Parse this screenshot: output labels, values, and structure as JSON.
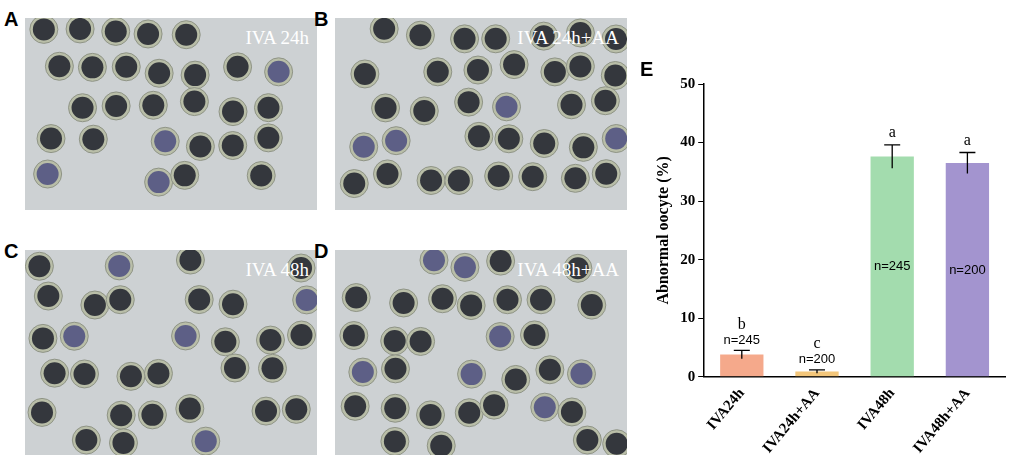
{
  "panels": [
    {
      "letter": "A",
      "label": "IVA 24h"
    },
    {
      "letter": "B",
      "label": "IVA 24h+AA"
    },
    {
      "letter": "C",
      "label": "IVA 48h"
    },
    {
      "letter": "D",
      "label": "IVA 48h+AA"
    },
    {
      "letter": "E"
    }
  ],
  "chart_data": {
    "type": "bar",
    "y_label": "Abnormal oocyte (%)",
    "categories": [
      "IVA24h",
      "IVA24h+AA",
      "IVA48h",
      "IVA48h+AA"
    ],
    "values": [
      3.8,
      0.9,
      37.6,
      36.5
    ],
    "errors": [
      0.7,
      0.3,
      2.0,
      1.8
    ],
    "colors": [
      "#f5a98b",
      "#f3c67a",
      "#a3dcae",
      "#a394cf"
    ],
    "ylim": [
      0,
      50
    ],
    "yticks": [
      0,
      10,
      20,
      30,
      40,
      50
    ],
    "grid": false,
    "annotations": {
      "letters": [
        "b",
        "c",
        "a",
        "a"
      ],
      "n_labels": [
        "n=245",
        "n=200",
        "n=245",
        "n=200"
      ]
    }
  }
}
